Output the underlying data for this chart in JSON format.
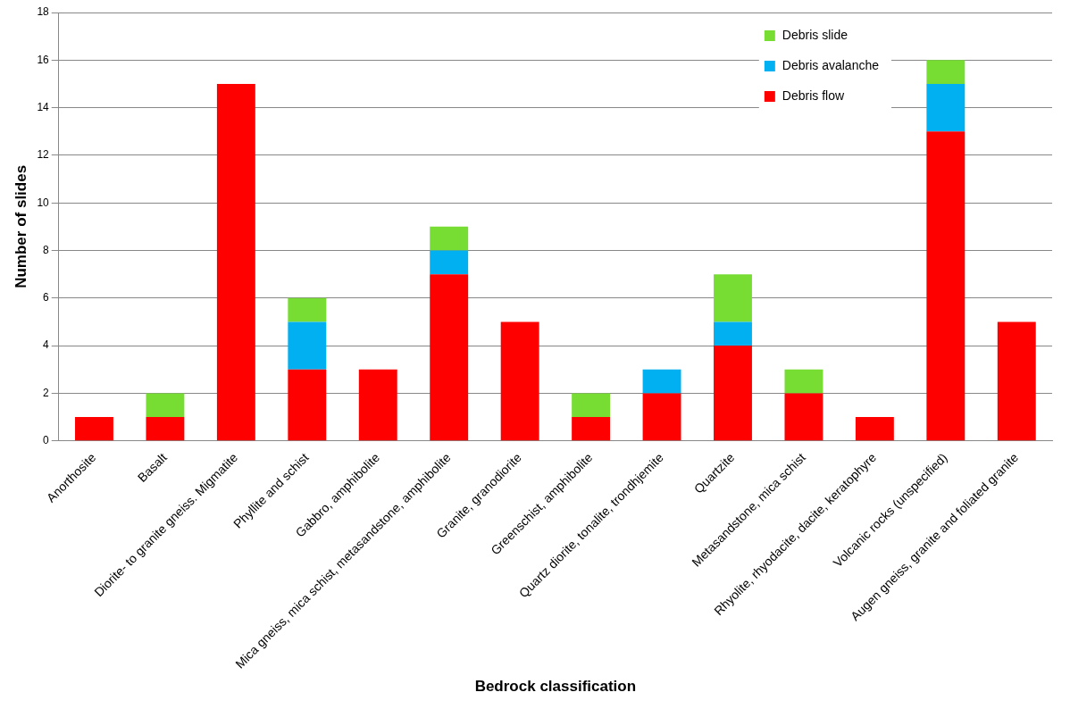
{
  "chart_data": {
    "type": "bar",
    "stacked": true,
    "xlabel": "Bedrock classification",
    "ylabel": "Number of slides",
    "categories": [
      "Anorthosite",
      "Basalt",
      "Diorite- to granite gneiss. Migmatite",
      "Phyllite and schist",
      "Gabbro, amphibolite",
      "Mica gneiss, mica schist, metasandstone, amphibolite",
      "Granite, granodiorite",
      "Greenschist, amphibolite",
      "Quartz diorite, tonalite, trondhjemite",
      "Quartzite",
      "Metasandstone, mica schist",
      "Rhyolite, rhyodacite, dacite, keratophyre",
      "Volcanic rocks (unspecified)",
      "Augen gneiss, granite and foliated granite"
    ],
    "series": [
      {
        "name": "Debris flow",
        "color": "#ff0000",
        "values": [
          1,
          1,
          15,
          3,
          3,
          7,
          5,
          1,
          2,
          4,
          2,
          1,
          13,
          5
        ]
      },
      {
        "name": "Debris avalanche",
        "color": "#00b0f0",
        "values": [
          0,
          0,
          0,
          2,
          0,
          1,
          0,
          0,
          1,
          1,
          0,
          0,
          2,
          0
        ]
      },
      {
        "name": "Debris slide",
        "color": "#77dd33",
        "values": [
          0,
          1,
          0,
          1,
          0,
          1,
          0,
          1,
          0,
          2,
          1,
          0,
          1,
          0
        ]
      }
    ],
    "ylim": [
      0,
      18
    ],
    "yticks": [
      0,
      2,
      4,
      6,
      8,
      10,
      12,
      14,
      16,
      18
    ],
    "grid": "y",
    "legend": "top right"
  }
}
